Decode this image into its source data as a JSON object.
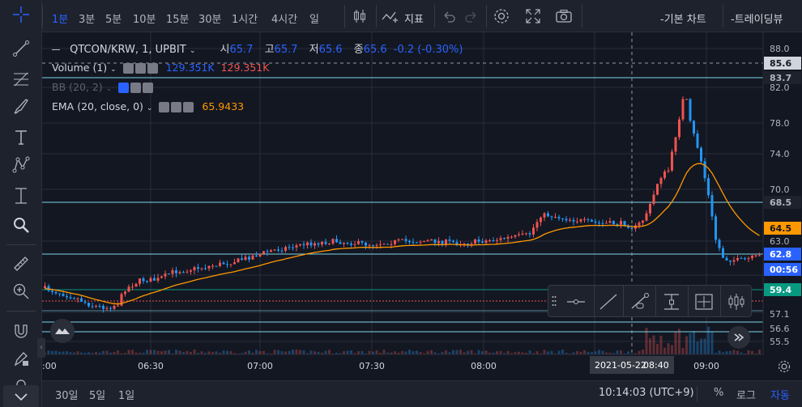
{
  "toolbar": {
    "timeframes": [
      {
        "label": "1분",
        "active": true
      },
      {
        "label": "3분",
        "active": false
      },
      {
        "label": "5분",
        "active": false
      },
      {
        "label": "10분",
        "active": false
      },
      {
        "label": "15분",
        "active": false
      },
      {
        "label": "30분",
        "active": false
      },
      {
        "label": "1시간",
        "active": false
      },
      {
        "label": "4시간",
        "active": false
      },
      {
        "label": "일",
        "active": false
      }
    ],
    "indicators_label": "지표",
    "basic_chart_label": "-기본 차트",
    "trading_view_label": "-트레이딩뷰"
  },
  "legend": {
    "symbol": "QTCON/KRW, 1, UPBIT",
    "open_label": "시",
    "open": "65.7",
    "high_label": "고",
    "high": "65.7",
    "low_label": "저",
    "low": "65.6",
    "close_label": "종",
    "close": "65.6",
    "change": "-0.2 (-0.30%)",
    "volume_label": "Volume (1)",
    "volume_val_1": "129.351K",
    "volume_val_2": "129.351K",
    "bb_label": "BB (20, 2)",
    "ema_label": "EMA (20, close, 0)",
    "ema_value": "65.9433"
  },
  "price_axis": {
    "ticks": [
      "88.0",
      "82.0",
      "78.0",
      "74.0",
      "70.0",
      "63.0",
      "57.1",
      "56.6",
      "55.5"
    ],
    "labels": [
      {
        "text": "85.6",
        "bg": "#d1d4dc",
        "fg": "#131722"
      },
      {
        "text": "83.7",
        "bg": "#1e222d",
        "fg": "#b2b5be"
      },
      {
        "text": "68.5",
        "bg": "#1e222d",
        "fg": "#b2b5be"
      },
      {
        "text": "64.5",
        "bg": "#ff9800",
        "fg": "#131722"
      },
      {
        "text": "62.8",
        "bg": "#2962ff",
        "fg": "#ffffff"
      },
      {
        "text": "00:56",
        "bg": "#2962ff",
        "fg": "#ffffff"
      },
      {
        "text": "59.4",
        "bg": "#089981",
        "fg": "#ffffff"
      }
    ]
  },
  "time_axis": {
    "ticks": [
      "06:30",
      "07:00",
      "07:30",
      "08:00",
      "09:00"
    ],
    "left_tick": ":00",
    "crosshair_date": "2021-05-22",
    "crosshair_time": "08:40"
  },
  "bottom": {
    "ranges": [
      "30일",
      "5일",
      "1일"
    ],
    "clock": "10:14:03 (UTC+9)",
    "percent": "%",
    "log": "로그",
    "auto": "자동"
  },
  "colors": {
    "up": "#ef5350",
    "down": "#2196f3",
    "ema": "#ff9800",
    "accent": "#2962ff",
    "hline": "#7fd6e8",
    "bg": "#131722"
  }
}
